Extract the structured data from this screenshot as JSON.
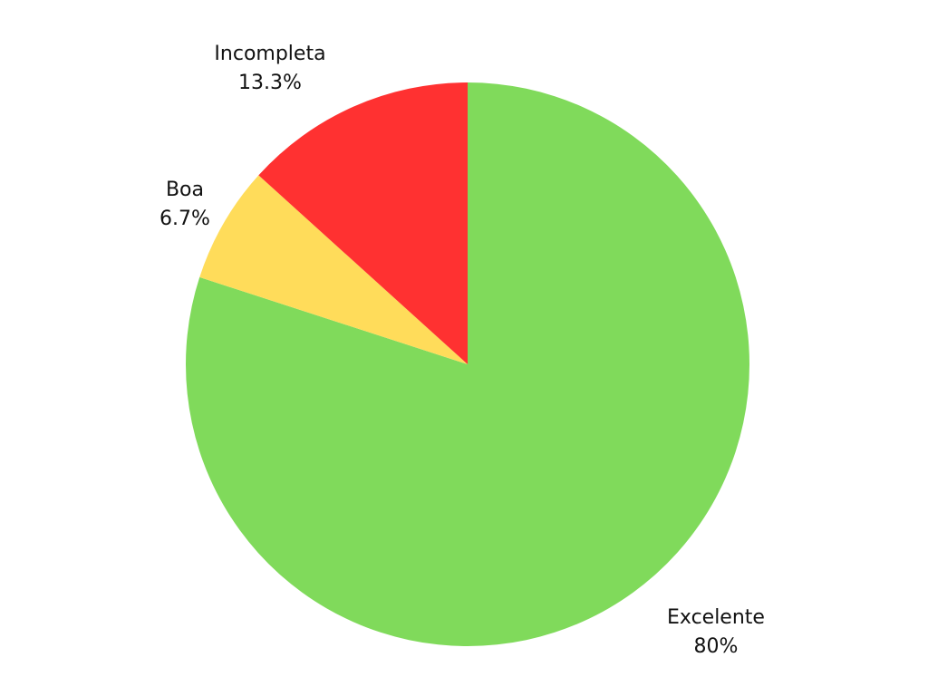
{
  "chart_data": {
    "type": "pie",
    "title": "",
    "start": "top",
    "direction": "clockwise",
    "slices": [
      {
        "name": "Excelente",
        "value": 80,
        "percent_label": "80%",
        "color": "#80DA5B"
      },
      {
        "name": "Boa",
        "value": 6.7,
        "percent_label": "6.7%",
        "color": "#FFDC5A"
      },
      {
        "name": "Incompleta",
        "value": 13.3,
        "percent_label": "13.3%",
        "color": "#FF3131"
      }
    ],
    "legend": "none"
  }
}
